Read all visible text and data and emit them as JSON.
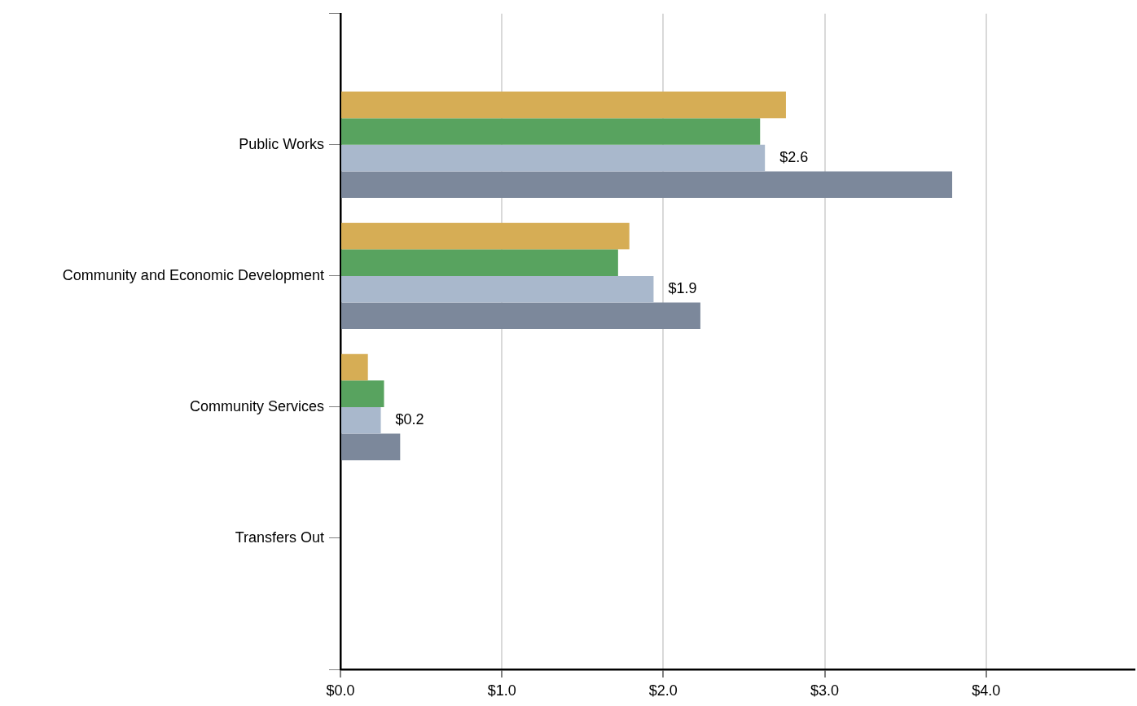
{
  "chart_data": {
    "type": "bar",
    "orientation": "horizontal",
    "categories": [
      null,
      "Public Works",
      "Community and Economic Development",
      "Community Services",
      "Transfers Out",
      null
    ],
    "series": [
      {
        "color": "#d6ad55",
        "values": [
          null,
          2.76,
          1.79,
          0.17,
          null,
          null
        ]
      },
      {
        "color": "#58a35f",
        "values": [
          null,
          2.6,
          1.72,
          0.27,
          null,
          null
        ]
      },
      {
        "color": "#a9b8cc",
        "values": [
          null,
          2.63,
          1.94,
          0.25,
          null,
          null
        ],
        "value_labels": [
          null,
          "$2.6",
          "$1.9",
          "$0.2",
          null,
          null
        ]
      },
      {
        "color": "#7c889b",
        "values": [
          null,
          3.79,
          2.23,
          0.37,
          null,
          null
        ]
      }
    ],
    "xlim": [
      0,
      4.92
    ],
    "xticks": [
      {
        "value": 0,
        "label": "$0.0"
      },
      {
        "value": 1,
        "label": "$1.0"
      },
      {
        "value": 2,
        "label": "$2.0"
      },
      {
        "value": 3,
        "label": "$3.0"
      },
      {
        "value": 4,
        "label": "$4.0"
      }
    ],
    "grid": "x"
  }
}
